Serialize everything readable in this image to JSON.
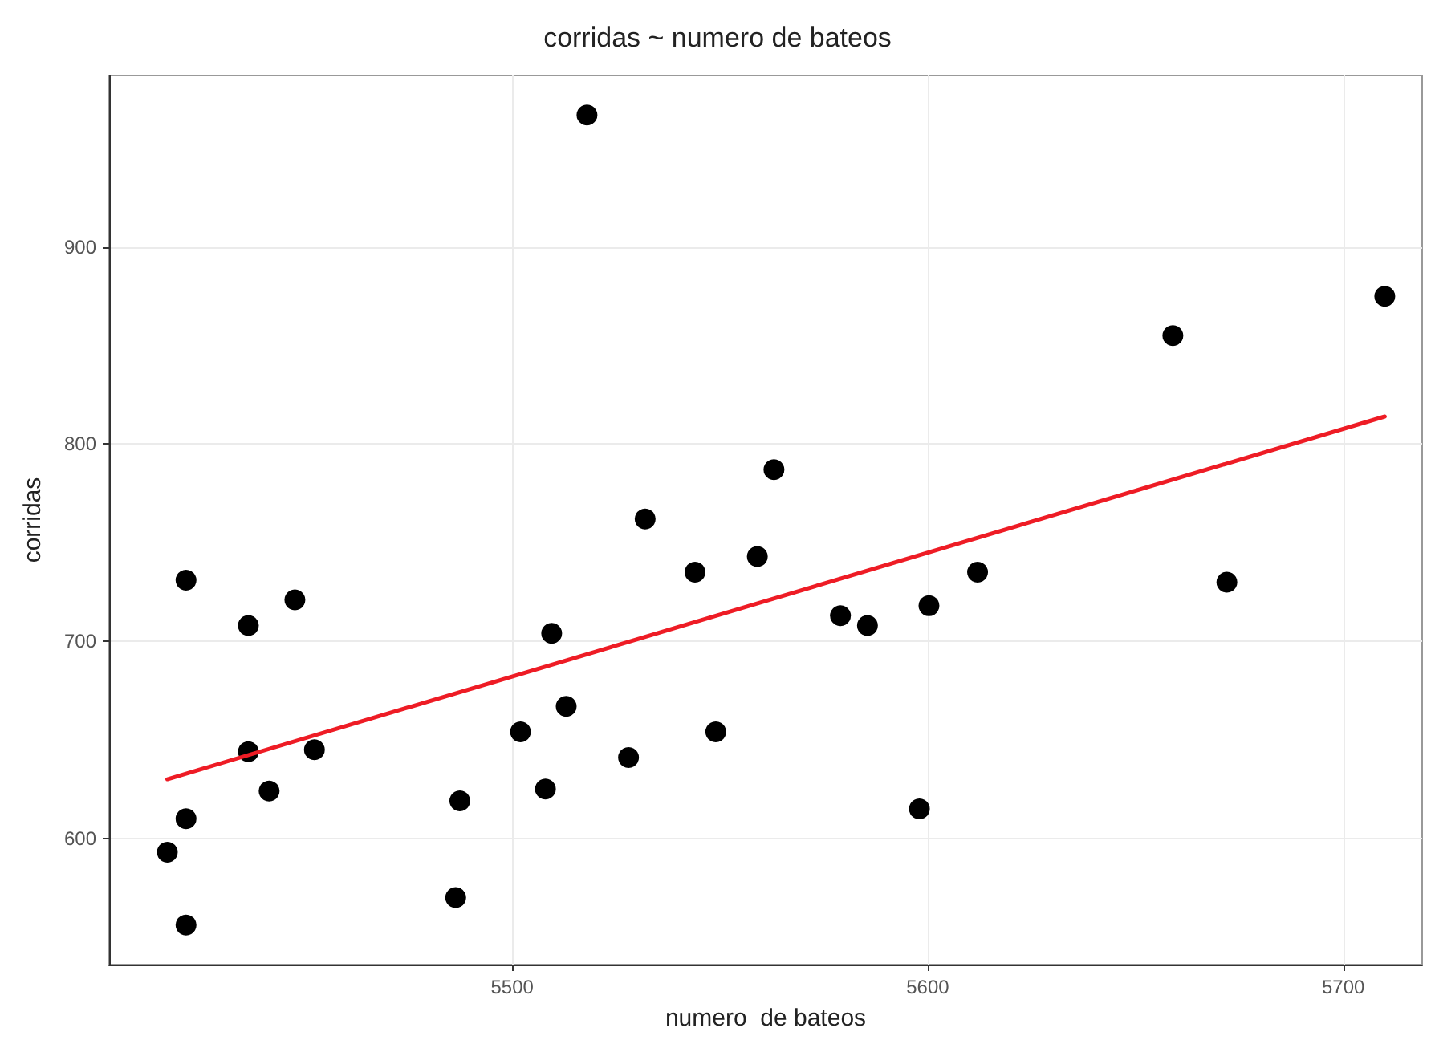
{
  "chart_data": {
    "type": "scatter",
    "title": "corridas ~ numero de bateos",
    "xlabel": "numero  de bateos",
    "ylabel": "corridas",
    "xlim": [
      5403,
      5719
    ],
    "ylim": [
      536,
      987
    ],
    "xticks": [
      5500,
      5600,
      5700
    ],
    "yticks": [
      600,
      700,
      800,
      900
    ],
    "grid": true,
    "marker": "circle",
    "series": [
      {
        "color": "#000000",
        "x": [
          5518,
          5421.5,
          5447.7,
          5436.5,
          5509.5,
          5532,
          5544,
          5559,
          5563,
          5513,
          5502,
          5549,
          5436.5,
          5452.4,
          5528,
          5441.5,
          5508,
          5487.4,
          5421.5,
          5417,
          5486.4,
          5421.5,
          5579,
          5585.5,
          5600.3,
          5612,
          5598,
          5659,
          5672,
          5710
        ],
        "values": [
          967,
          731,
          721,
          708,
          704,
          762,
          735,
          743,
          787,
          667,
          654,
          654,
          644,
          645,
          641,
          624,
          625,
          619,
          610,
          593,
          570,
          556,
          713,
          708,
          718,
          735,
          615,
          855,
          730,
          875
        ]
      },
      {
        "type": "line",
        "color": "#ee1c25",
        "marker": "none",
        "x": [
          5417,
          5710
        ],
        "values": [
          630,
          814
        ]
      }
    ]
  }
}
